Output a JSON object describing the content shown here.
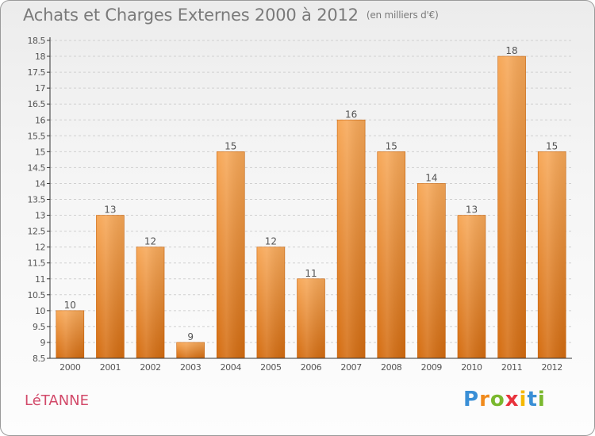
{
  "header": {
    "title": "Achats et Charges Externes 2000 à 2012",
    "subtitle": "(en milliers d'€)"
  },
  "footer": {
    "commune": "LéTANNE",
    "logo_letters": [
      "P",
      "r",
      "o",
      "x",
      "i",
      "t",
      "i"
    ],
    "logo_colors": [
      "#3a8fd6",
      "#f08a1c",
      "#7ab82e",
      "#e8323c",
      "#f5b800",
      "#3a8fd6",
      "#7ab82e"
    ]
  },
  "colors": {
    "bar_top": "#f7a858",
    "bar_bottom": "#d46c10",
    "grid": "#d0d0d0",
    "axis": "#333333",
    "text": "#555555"
  },
  "chart_data": {
    "type": "bar",
    "categories": [
      "2000",
      "2001",
      "2002",
      "2003",
      "2004",
      "2005",
      "2006",
      "2007",
      "2008",
      "2009",
      "2010",
      "2011",
      "2012"
    ],
    "values": [
      10,
      13,
      12,
      9,
      15,
      12,
      11,
      16,
      15,
      14,
      13,
      18,
      15
    ],
    "ylim": [
      8.5,
      18.5
    ],
    "yticks": [
      "8.5",
      "9",
      "9.5",
      "10",
      "10.5",
      "11",
      "11.5",
      "12",
      "12.5",
      "13",
      "13.5",
      "14",
      "14.5",
      "15",
      "15.5",
      "16",
      "16.5",
      "17",
      "17.5",
      "18",
      "18.5"
    ],
    "grid": true
  }
}
